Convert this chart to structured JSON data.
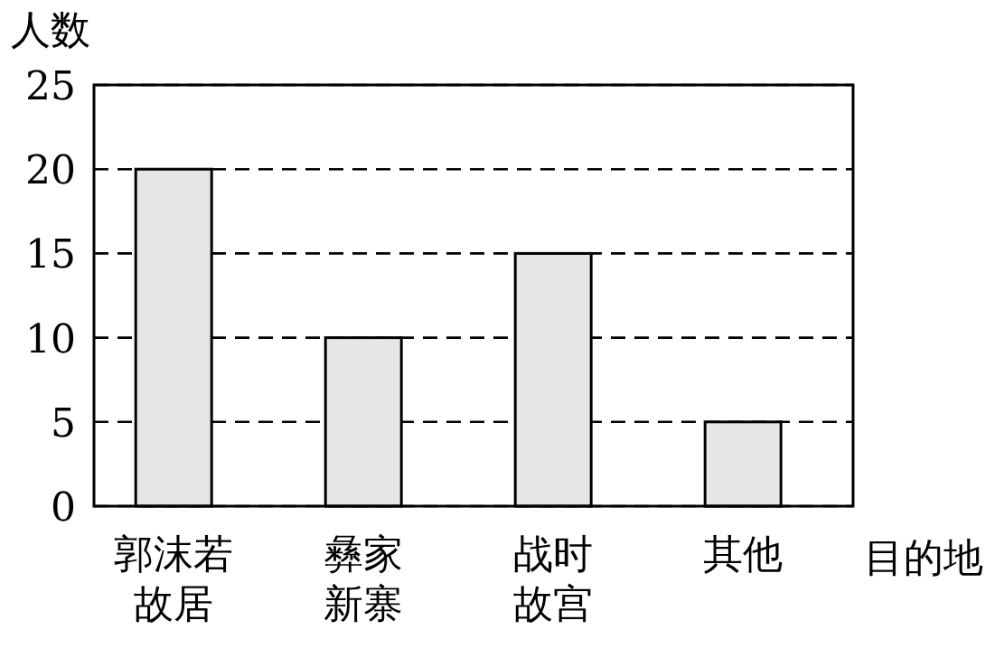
{
  "chart_data": {
    "type": "bar",
    "ylabel": "人数",
    "xlabel": "目的地",
    "categories": [
      "郭沫若故居",
      "彝家新寨",
      "战时故宫",
      "其他"
    ],
    "values": [
      20,
      10,
      15,
      5
    ],
    "color": "#e6e6e6",
    "ylim": [
      0,
      25
    ],
    "yticks": [
      0,
      5,
      10,
      15,
      20,
      25
    ],
    "grid": "y",
    "line_style": "dashed"
  }
}
